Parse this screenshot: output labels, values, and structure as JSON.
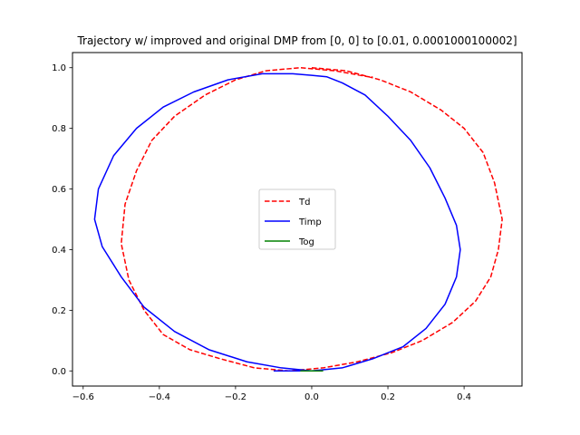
{
  "chart_data": {
    "type": "line",
    "title": "Trajectory w/ improved and original DMP from [0, 0] to [0.01, 0.0001000100002]",
    "xlabel": "",
    "ylabel": "",
    "xlim": [
      -0.628,
      0.552
    ],
    "ylim": [
      -0.05,
      1.05
    ],
    "x_ticks": [
      -0.6,
      -0.4,
      -0.2,
      0.0,
      0.2,
      0.4
    ],
    "x_tick_labels": [
      "−0.6",
      "−0.4",
      "−0.2",
      "0.0",
      "0.2",
      "0.4"
    ],
    "y_ticks": [
      0.0,
      0.2,
      0.4,
      0.6,
      0.8,
      1.0
    ],
    "y_tick_labels": [
      "0.0",
      "0.2",
      "0.4",
      "0.6",
      "0.8",
      "1.0"
    ],
    "grid": false,
    "legend_position": "center",
    "series": [
      {
        "name": "Td",
        "color": "#ff0000",
        "style": "dashed",
        "x": [
          0.0,
          0.09,
          0.18,
          0.26,
          0.34,
          0.4,
          0.45,
          0.48,
          0.5,
          0.49,
          0.47,
          0.43,
          0.37,
          0.29,
          0.21,
          0.12,
          0.03,
          -0.06,
          -0.15,
          -0.24,
          -0.32,
          -0.39,
          -0.44,
          -0.48,
          -0.5,
          -0.49,
          -0.46,
          -0.42,
          -0.36,
          -0.28,
          -0.2,
          -0.12,
          -0.03,
          0.06,
          0.15,
          0.16
        ],
        "y": [
          1.0,
          0.99,
          0.96,
          0.92,
          0.86,
          0.8,
          0.72,
          0.62,
          0.5,
          0.4,
          0.31,
          0.23,
          0.16,
          0.1,
          0.06,
          0.03,
          0.01,
          0.0,
          0.01,
          0.04,
          0.07,
          0.12,
          0.2,
          0.3,
          0.42,
          0.55,
          0.66,
          0.76,
          0.84,
          0.91,
          0.96,
          0.99,
          1.0,
          0.99,
          0.97,
          0.97
        ]
      },
      {
        "name": "Timp",
        "color": "#0000ff",
        "style": "solid",
        "x": [
          0.0,
          -0.08,
          -0.17,
          -0.27,
          -0.36,
          -0.44,
          -0.5,
          -0.55,
          -0.57,
          -0.56,
          -0.52,
          -0.46,
          -0.39,
          -0.31,
          -0.22,
          -0.13,
          -0.05,
          0.0,
          0.04,
          0.08,
          0.14,
          0.2,
          0.26,
          0.31,
          0.35,
          0.38,
          0.39,
          0.38,
          0.35,
          0.3,
          0.24,
          0.16,
          0.08,
          0.0,
          -0.06,
          -0.1
        ],
        "y": [
          0.0,
          0.01,
          0.03,
          0.07,
          0.13,
          0.21,
          0.31,
          0.41,
          0.5,
          0.6,
          0.71,
          0.8,
          0.87,
          0.92,
          0.96,
          0.98,
          0.98,
          0.975,
          0.97,
          0.95,
          0.91,
          0.84,
          0.76,
          0.67,
          0.57,
          0.48,
          0.4,
          0.31,
          0.22,
          0.14,
          0.08,
          0.04,
          0.01,
          0.0,
          0.0,
          0.0
        ]
      },
      {
        "name": "Tog",
        "color": "#008000",
        "style": "solid",
        "x": [
          -0.03,
          -0.01,
          0.0,
          0.01,
          0.02,
          0.03
        ],
        "y": [
          0.0,
          0.0,
          0.0,
          0.0001,
          0.0,
          0.0
        ]
      }
    ]
  }
}
